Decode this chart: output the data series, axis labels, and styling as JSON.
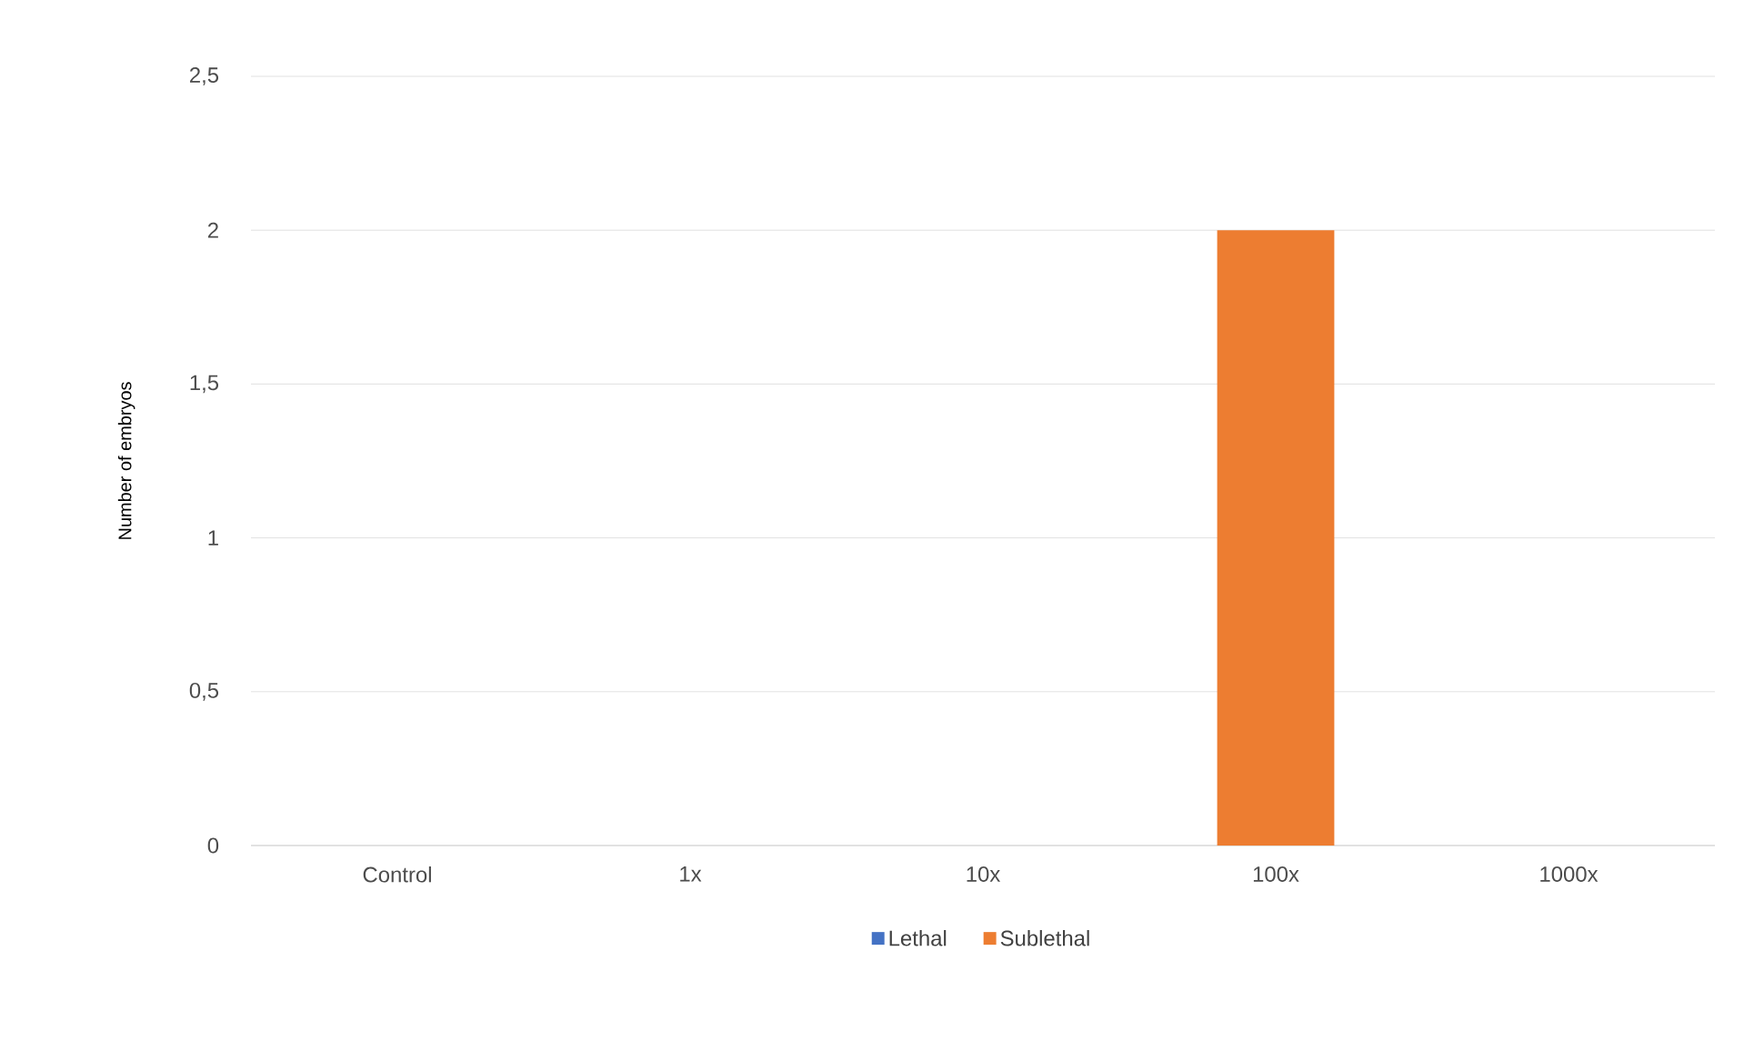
{
  "chart_data": {
    "type": "bar",
    "ylabel": "Number of embryos",
    "categories": [
      "Control",
      "1x",
      "10x",
      "100x",
      "1000x"
    ],
    "series": [
      {
        "name": "Lethal",
        "color": "#4472c4",
        "values": [
          0,
          0,
          0,
          0,
          0
        ]
      },
      {
        "name": "Sublethal",
        "color": "#ed7d31",
        "values": [
          0,
          0,
          0,
          2,
          0
        ]
      }
    ],
    "ylim": [
      0,
      2.5
    ],
    "yticks": [
      0,
      {
        "value": 0.5,
        "label": "0,5"
      },
      1,
      {
        "value": 1.5,
        "label": "1,5"
      },
      2,
      {
        "value": 2.5,
        "label": "2,5"
      }
    ],
    "grid": "y",
    "legend": "bottom"
  }
}
